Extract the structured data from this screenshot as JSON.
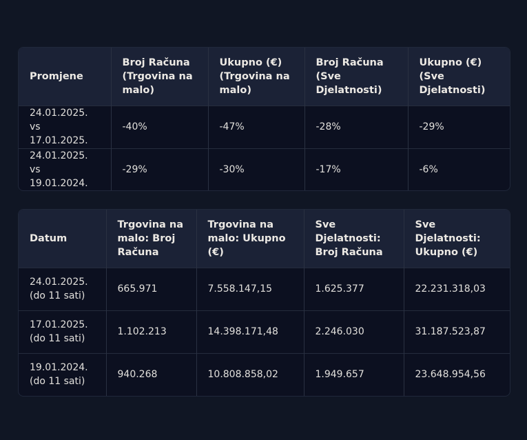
{
  "table1": {
    "headers": [
      "Promjene",
      "Broj Računa (Trgovina na malo)",
      "Ukupno (€) (Trgovina na malo)",
      "Broj Računa (Sve Djelatnosti)",
      "Ukupno (€) (Sve Djelatnosti)"
    ],
    "rows": [
      [
        "24.01.2025. vs 17.01.2025.",
        "-40%",
        "-47%",
        "-28%",
        "-29%"
      ],
      [
        "24.01.2025. vs 19.01.2024.",
        "-29%",
        "-30%",
        "-17%",
        "-6%"
      ]
    ]
  },
  "table2": {
    "headers": [
      "Datum",
      "Trgovina na malo: Broj Računa",
      "Trgovina na malo: Ukupno (€)",
      "Sve Djelatnosti: Broj Računa",
      "Sve Djelatnosti: Ukupno (€)"
    ],
    "rows": [
      [
        "24.01.2025. (do 11 sati)",
        "665.971",
        "7.558.147,15",
        "1.625.377",
        "22.231.318,03"
      ],
      [
        "17.01.2025. (do 11 sati)",
        "1.102.213",
        "14.398.171,48",
        "2.246.030",
        "31.187.523,87"
      ],
      [
        "19.01.2024. (do 11 sati)",
        "940.268",
        "10.808.858,02",
        "1.949.657",
        "23.648.954,56"
      ]
    ]
  }
}
